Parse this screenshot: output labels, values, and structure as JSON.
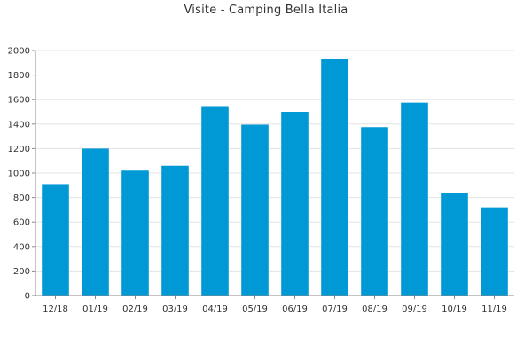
{
  "chart_data": {
    "type": "bar",
    "title": "Visite - Camping Bella Italia",
    "categories": [
      "12/18",
      "01/19",
      "02/19",
      "03/19",
      "04/19",
      "05/19",
      "06/19",
      "07/19",
      "08/19",
      "09/19",
      "10/19",
      "11/19"
    ],
    "values": [
      910,
      1200,
      1020,
      1060,
      1540,
      1395,
      1500,
      1935,
      1375,
      1575,
      835,
      720
    ],
    "ylim": [
      0,
      2000
    ],
    "yticks": [
      0,
      200,
      400,
      600,
      800,
      1000,
      1200,
      1400,
      1600,
      1800,
      2000
    ],
    "grid": true,
    "bar_color": "#0099d6"
  }
}
